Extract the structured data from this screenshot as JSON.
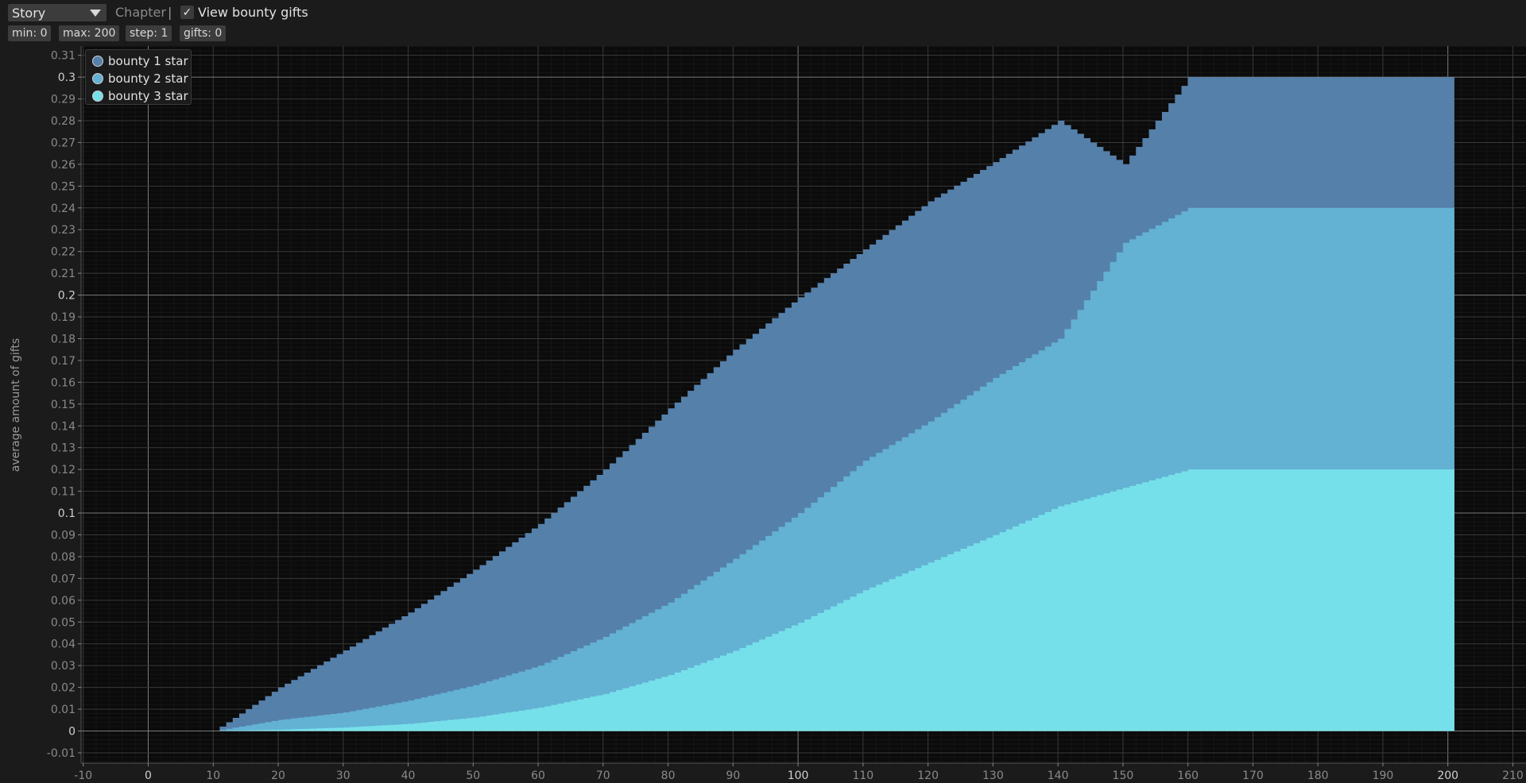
{
  "toolbar": {
    "dropdown_value": "Story",
    "chapter_label": "Chapter",
    "separator": "|",
    "checkbox_mark": "✓",
    "checkbox_label": "View bounty gifts",
    "chips": [
      "min: 0",
      "max: 200",
      "step: 1",
      "gifts: 0"
    ]
  },
  "chart_data": {
    "type": "area",
    "stacked": true,
    "ylabel": "average amount of gifts",
    "xlabel": "",
    "xlim": [
      -10,
      210
    ],
    "ylim": [
      -0.015,
      0.315
    ],
    "x_ticks": [
      -10,
      0,
      10,
      20,
      30,
      40,
      50,
      60,
      70,
      80,
      90,
      100,
      110,
      120,
      130,
      140,
      150,
      160,
      170,
      180,
      190,
      200,
      210
    ],
    "x_tick_labels": [
      "-10",
      "0",
      "10",
      "20",
      "30",
      "40",
      "50",
      "60",
      "70",
      "80",
      "90",
      "100",
      "110",
      "120",
      "130",
      "140",
      "150",
      "160",
      "170",
      "180",
      "190",
      "200",
      "210"
    ],
    "y_ticks": [
      -0.01,
      0,
      0.01,
      0.02,
      0.03,
      0.04,
      0.05,
      0.06,
      0.07,
      0.08,
      0.09,
      0.1,
      0.11,
      0.12,
      0.13,
      0.14,
      0.15,
      0.16,
      0.17,
      0.18,
      0.19,
      0.2,
      0.21,
      0.22,
      0.23,
      0.24,
      0.25,
      0.26,
      0.27,
      0.28,
      0.29,
      0.3,
      0.31
    ],
    "y_tick_labels": [
      "-0.01",
      "0",
      "0.01",
      "0.02",
      "0.03",
      "0.04",
      "0.05",
      "0.06",
      "0.07",
      "0.08",
      "0.09",
      "0.1",
      "0.11",
      "0.12",
      "0.13",
      "0.14",
      "0.15",
      "0.16",
      "0.17",
      "0.18",
      "0.19",
      "0.2",
      "0.21",
      "0.22",
      "0.23",
      "0.24",
      "0.25",
      "0.26",
      "0.27",
      "0.28",
      "0.29",
      "0.3",
      "0.31"
    ],
    "grid": true,
    "legend_position": "top-left",
    "step": 1,
    "x": [
      10,
      20,
      30,
      40,
      50,
      60,
      70,
      80,
      90,
      100,
      110,
      120,
      130,
      140,
      150,
      160,
      170,
      180,
      190,
      200
    ],
    "series": [
      {
        "name": "bounty 3 star",
        "color": "#76e0ea",
        "values": [
          0,
          0.0006,
          0.0016,
          0.0033,
          0.0062,
          0.0107,
          0.017,
          0.0257,
          0.0368,
          0.0497,
          0.0646,
          0.0773,
          0.0899,
          0.1031,
          0.1116,
          0.12,
          0.12,
          0.12,
          0.12,
          0.12
        ]
      },
      {
        "name": "bounty 2 star",
        "color": "#63b1d3",
        "values": [
          0,
          0.0045,
          0.0069,
          0.0107,
          0.0148,
          0.0193,
          0.0262,
          0.0333,
          0.0422,
          0.0503,
          0.0594,
          0.0647,
          0.0721,
          0.0769,
          0.1124,
          0.12,
          0.12,
          0.12,
          0.12,
          0.12
        ]
      },
      {
        "name": "bounty 1 star",
        "color": "#5580aa",
        "values": [
          0,
          0.0149,
          0.0285,
          0.0404,
          0.053,
          0.065,
          0.0768,
          0.089,
          0.096,
          0.099,
          0.097,
          0.101,
          0.099,
          0.1,
          0.036,
          0.06,
          0.06,
          0.06,
          0.06,
          0.06
        ]
      }
    ]
  }
}
